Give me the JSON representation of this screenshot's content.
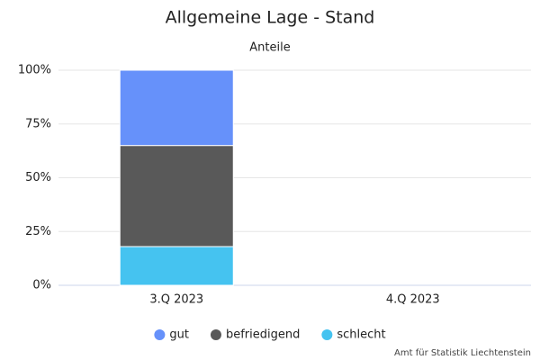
{
  "chart_data": {
    "type": "stacked_bar",
    "title": "Allgemeine Lage - Stand",
    "subtitle": "Anteile",
    "categories": [
      "3.Q 2023",
      "4.Q 2023"
    ],
    "series": [
      {
        "name": "gut",
        "color": "#6691fa",
        "values": [
          35,
          null
        ]
      },
      {
        "name": "befriedigend",
        "color": "#595959",
        "values": [
          47,
          null
        ]
      },
      {
        "name": "schlecht",
        "color": "#45c3f0",
        "values": [
          18,
          null
        ]
      }
    ],
    "ylim": [
      0,
      100
    ],
    "yticks": [
      {
        "value": 0,
        "label": "0%"
      },
      {
        "value": 25,
        "label": "25%"
      },
      {
        "value": 50,
        "label": "50%"
      },
      {
        "value": 75,
        "label": "75%"
      },
      {
        "value": 100,
        "label": "100%"
      }
    ],
    "grid": true,
    "credit": "Amt für Statistik Liechtenstein"
  }
}
